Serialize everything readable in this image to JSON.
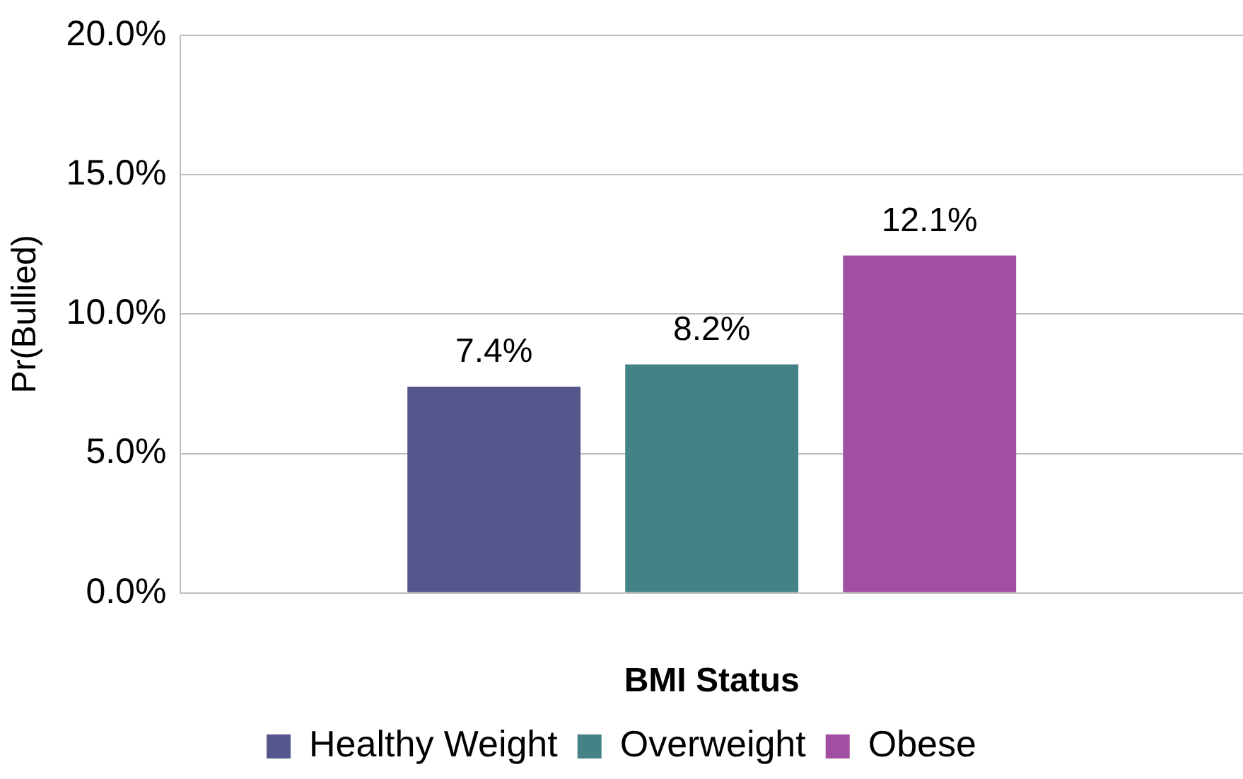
{
  "chart_data": {
    "type": "bar",
    "xlabel": "BMI Status",
    "ylabel": "Pr(Bullied)",
    "categories": [
      null
    ],
    "series": [
      {
        "name": "Healthy Weight",
        "color": "#55568b",
        "values": [
          7.4
        ],
        "value_labels": [
          "7.4%"
        ]
      },
      {
        "name": "Overweight",
        "color": "#438287",
        "values": [
          8.2
        ],
        "value_labels": [
          "8.2%"
        ]
      },
      {
        "name": "Obese",
        "color": "#a14fa3",
        "values": [
          12.1
        ],
        "value_labels": [
          "12.1%"
        ]
      }
    ],
    "ylim": [
      0,
      20
    ],
    "yticks": [
      {
        "value": 0,
        "label": "0.0%"
      },
      {
        "value": 5,
        "label": "5.0%"
      },
      {
        "value": 10,
        "label": "10.0%"
      },
      {
        "value": 15,
        "label": "15.0%"
      },
      {
        "value": 20,
        "label": "20.0%"
      }
    ],
    "grid": "y",
    "legend": "bottom"
  }
}
